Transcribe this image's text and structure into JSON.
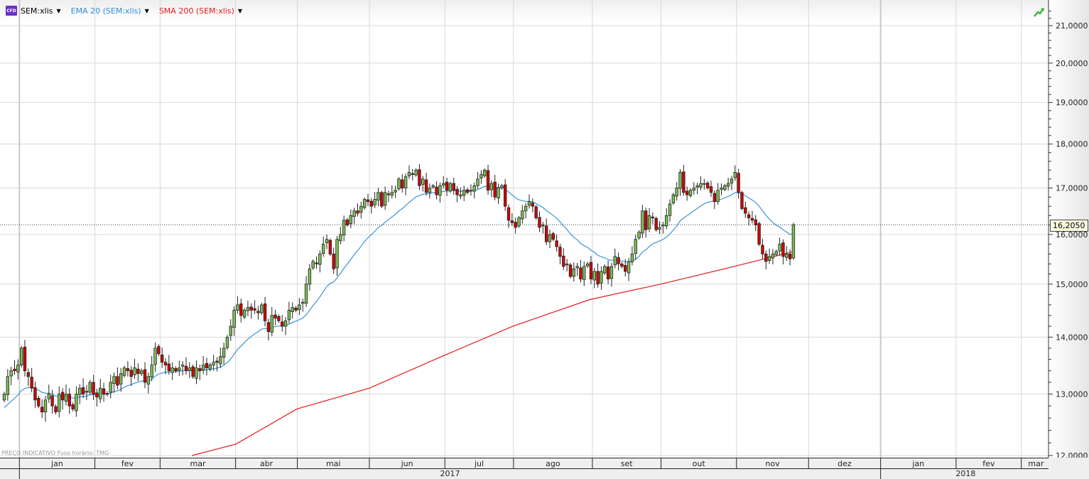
{
  "legend": {
    "badge": "CFD",
    "symbol": "SEM:xlis",
    "ema": "EMA 20 (SEM:xlis)",
    "sma": "SMA 200 (SEM:xlis)"
  },
  "footnote": "PREÇO INDICATIVO   Fuso horário: TMG",
  "colors": {
    "up": "#7cbf55",
    "down": "#d40000",
    "ema": "#3a95d6",
    "sma": "#e31b1b",
    "grid": "#d8d8d8"
  },
  "chart_data": {
    "type": "candlestick",
    "scale": "log",
    "ylim": [
      12,
      21.5
    ],
    "y_ticks": [
      "12,0000",
      "13,0000",
      "14,0000",
      "15,0000",
      "16,0000",
      "17,0000",
      "18,0000",
      "19,0000",
      "20,0000",
      "21,0000"
    ],
    "y_tick_values": [
      12,
      13,
      14,
      15,
      16,
      17,
      18,
      19,
      20,
      21
    ],
    "last_price": 16.205,
    "last_price_label": "16,2050",
    "months": [
      {
        "label": "jan",
        "start": 4
      },
      {
        "label": "fev",
        "start": 26
      },
      {
        "label": "mar",
        "start": 45
      },
      {
        "label": "abr",
        "start": 67
      },
      {
        "label": "mai",
        "start": 85
      },
      {
        "label": "jun",
        "start": 106
      },
      {
        "label": "jul",
        "start": 128
      },
      {
        "label": "ago",
        "start": 148
      },
      {
        "label": "set",
        "start": 171
      },
      {
        "label": "out",
        "start": 191
      },
      {
        "label": "nov",
        "start": 213
      },
      {
        "label": "dez",
        "start": 234
      },
      {
        "label": "jan",
        "start": 255
      },
      {
        "label": "fev",
        "start": 277
      },
      {
        "label": "mar",
        "start": 296
      }
    ],
    "years": [
      {
        "label": "2017",
        "start": 4
      },
      {
        "label": "2018",
        "start": 255
      }
    ],
    "axis_end": 305,
    "close": [
      13.0,
      13.3,
      13.4,
      13.4,
      13.5,
      13.8,
      13.4,
      13.3,
      13.1,
      12.9,
      12.8,
      12.7,
      12.9,
      13.0,
      12.8,
      12.7,
      13.0,
      12.9,
      13.0,
      12.8,
      12.75,
      13.0,
      13.1,
      13.0,
      13.05,
      13.2,
      13.0,
      12.95,
      13.1,
      13.0,
      13.0,
      13.2,
      13.3,
      13.15,
      13.35,
      13.45,
      13.4,
      13.3,
      13.45,
      13.35,
      13.4,
      13.2,
      13.3,
      13.5,
      13.8,
      13.7,
      13.55,
      13.5,
      13.4,
      13.45,
      13.4,
      13.45,
      13.5,
      13.4,
      13.45,
      13.3,
      13.45,
      13.4,
      13.5,
      13.45,
      13.5,
      13.55,
      13.55,
      13.65,
      13.8,
      14.0,
      14.2,
      14.5,
      14.6,
      14.4,
      14.5,
      14.55,
      14.5,
      14.5,
      14.45,
      14.6,
      14.3,
      14.1,
      14.4,
      14.35,
      14.3,
      14.2,
      14.3,
      14.5,
      14.55,
      14.5,
      14.6,
      14.65,
      15.0,
      15.3,
      15.45,
      15.4,
      15.6,
      15.8,
      15.9,
      15.6,
      15.3,
      15.9,
      16.0,
      16.3,
      16.2,
      16.4,
      16.5,
      16.45,
      16.6,
      16.75,
      16.7,
      16.6,
      16.75,
      16.9,
      16.6,
      16.9,
      16.85,
      16.9,
      16.95,
      17.2,
      17.0,
      17.25,
      17.35,
      17.3,
      17.4,
      17.05,
      17.2,
      16.9,
      17.0,
      17.05,
      16.85,
      17.05,
      17.1,
      16.95,
      17.1,
      16.95,
      16.85,
      16.85,
      16.95,
      16.9,
      16.95,
      17.05,
      17.2,
      17.3,
      17.4,
      16.95,
      17.1,
      16.8,
      17.0,
      17.05,
      16.6,
      16.3,
      16.25,
      16.15,
      16.35,
      16.5,
      16.6,
      16.7,
      16.6,
      16.35,
      16.15,
      16.2,
      15.85,
      16.0,
      15.9,
      15.75,
      15.55,
      15.35,
      15.4,
      15.15,
      15.3,
      15.35,
      15.1,
      15.35,
      15.4,
      15.1,
      15.25,
      15.0,
      15.25,
      15.35,
      15.1,
      15.35,
      15.55,
      15.4,
      15.35,
      15.25,
      15.45,
      15.6,
      15.9,
      16.05,
      16.5,
      16.1,
      16.4,
      16.35,
      16.1,
      16.15,
      16.2,
      16.4,
      16.65,
      16.85,
      17.0,
      17.35,
      16.9,
      16.85,
      16.95,
      17.0,
      17.05,
      17.1,
      17.1,
      17.0,
      16.9,
      16.7,
      16.95,
      17.0,
      17.05,
      17.1,
      17.2,
      17.35,
      16.9,
      16.55,
      16.45,
      16.35,
      16.3,
      16.2,
      15.8,
      15.6,
      15.45,
      15.55,
      15.6,
      15.65,
      15.8,
      15.55,
      15.6,
      15.5,
      16.205
    ],
    "ema_seed": 12.75,
    "ema_period": 20,
    "sma200_points": [
      [
        54.7,
        12.0
      ],
      [
        67.5,
        12.18
      ],
      [
        85.3,
        12.75
      ],
      [
        106.4,
        13.1
      ],
      [
        128.2,
        13.67
      ],
      [
        148.2,
        14.2
      ],
      [
        170.6,
        14.7
      ],
      [
        191.3,
        15.0
      ],
      [
        212.8,
        15.35
      ],
      [
        230,
        15.65
      ]
    ]
  }
}
